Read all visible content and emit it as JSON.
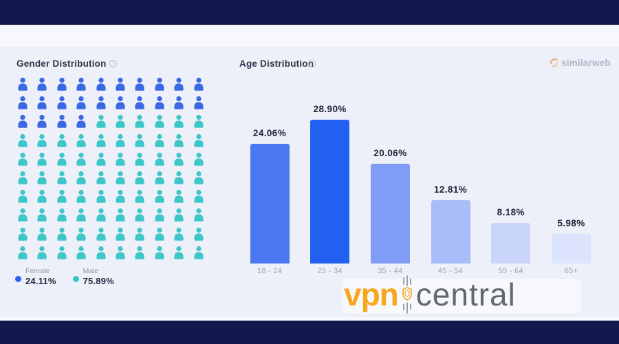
{
  "page": {
    "top_band_color": "#121a4d",
    "bottom_band_color": "#121a4d",
    "card_color": "#edf0f9",
    "outer_band_color": "#f6f8fd"
  },
  "gender": {
    "title": "Gender Distribution",
    "info_icon": "i",
    "legend": [
      {
        "label": "Female",
        "value": "24.11%",
        "color": "#2e63f2"
      },
      {
        "label": "Male",
        "value": "75.89%",
        "color": "#2fc6c8"
      }
    ]
  },
  "age": {
    "title": "Age Distribution",
    "info_icon": "i"
  },
  "branding": {
    "similarweb_text": "similarweb",
    "watermark_vpn": "vpn",
    "watermark_central": "central"
  },
  "chart_data": [
    {
      "type": "pictogram",
      "title": "Gender Distribution",
      "categories": [
        "Female",
        "Male"
      ],
      "values": [
        24.11,
        75.89
      ],
      "value_labels": [
        "24.11%",
        "75.89%"
      ],
      "colors": [
        "#3b68e4",
        "#3ec7c9"
      ],
      "grid": {
        "columns": 10,
        "rows": 10,
        "icons_female": 24,
        "icons_male": 76
      },
      "legend_position": "bottom"
    },
    {
      "type": "bar",
      "title": "Age Distribution",
      "categories": [
        "18 - 24",
        "25 - 34",
        "35 - 44",
        "45 - 54",
        "55 - 64",
        "65+"
      ],
      "values": [
        24.06,
        28.9,
        20.06,
        12.81,
        8.18,
        5.98
      ],
      "value_labels": [
        "24.06%",
        "28.90%",
        "20.06%",
        "12.81%",
        "8.18%",
        "5.98%"
      ],
      "bar_colors": [
        "#4a78f1",
        "#2160f0",
        "#7f9df5",
        "#a9bdf8",
        "#c9d5fb",
        "#dce3fc"
      ],
      "ylabel": "",
      "xlabel": "",
      "ylim": [
        0,
        30
      ],
      "grid": false,
      "value_labels_shown": true,
      "legend_position": "none"
    }
  ]
}
